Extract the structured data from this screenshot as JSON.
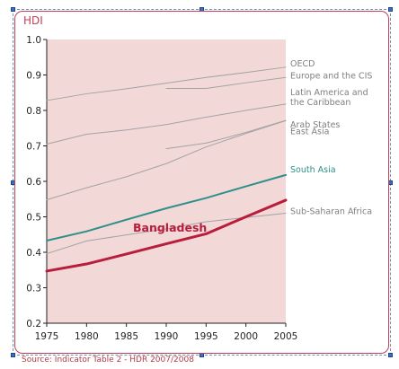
{
  "source_note": "Source: Indicator Table 2 - HDR 2007/2008",
  "chart_data": {
    "type": "line",
    "title": "",
    "ylabel": "HDI",
    "xlabel": "",
    "xlim": [
      1975,
      2005
    ],
    "ylim": [
      0.2,
      1.0
    ],
    "x_ticks": [
      1975,
      1980,
      1985,
      1990,
      1995,
      2000,
      2005
    ],
    "y_ticks": [
      0.2,
      0.3,
      0.4,
      0.5,
      0.6,
      0.7,
      0.8,
      0.9,
      1.0
    ],
    "y_tick_labels": [
      "0.2",
      "0.3",
      "0.4",
      "0.5",
      "0.6",
      "0.7",
      "0.8",
      "0.9",
      "1.0"
    ],
    "grid": false,
    "legend": "labels at line ends",
    "colors": {
      "plot_background": "#f3d8d8",
      "frame": "#c0405a",
      "regions": "#a3a3a3",
      "south_asia": "#2e8f8a",
      "bangladesh": "#b81d3c",
      "labels": "#7f7f7f"
    },
    "series": [
      {
        "name": "OECD",
        "color": "#a3a3a3",
        "x": [
          1975,
          1980,
          1985,
          1990,
          1995,
          2000,
          2005
        ],
        "y": [
          0.828,
          0.847,
          0.861,
          0.877,
          0.893,
          0.907,
          0.922
        ]
      },
      {
        "name": "Europe and the CIS",
        "color": "#a3a3a3",
        "x": [
          1990,
          1995,
          2000,
          2005
        ],
        "y": [
          0.862,
          0.862,
          0.878,
          0.893
        ]
      },
      {
        "name": "Latin America and the Caribbean",
        "color": "#a3a3a3",
        "x": [
          1975,
          1980,
          1985,
          1990,
          1995,
          2000,
          2005
        ],
        "y": [
          0.705,
          0.733,
          0.745,
          0.76,
          0.781,
          0.8,
          0.818
        ]
      },
      {
        "name": "East Asia",
        "color": "#a3a3a3",
        "x": [
          1975,
          1980,
          1985,
          1990,
          1995,
          2000,
          2005
        ],
        "y": [
          0.548,
          0.582,
          0.613,
          0.65,
          0.697,
          0.735,
          0.771
        ]
      },
      {
        "name": "Arab States",
        "color": "#a3a3a3",
        "x": [
          1990,
          1995,
          2000,
          2005
        ],
        "y": [
          0.692,
          0.708,
          0.738,
          0.772
        ]
      },
      {
        "name": "South Asia",
        "color": "#2e8f8a",
        "x": [
          1975,
          1980,
          1985,
          1990,
          1995,
          2000,
          2005
        ],
        "y": [
          0.433,
          0.459,
          0.492,
          0.524,
          0.553,
          0.586,
          0.618
        ]
      },
      {
        "name": "Sub-Saharan Africa",
        "color": "#a3a3a3",
        "x": [
          1975,
          1980,
          1985,
          1990,
          1995,
          2000,
          2005
        ],
        "y": [
          0.396,
          0.432,
          0.449,
          0.466,
          0.486,
          0.498,
          0.51
        ]
      },
      {
        "name": "Bangladesh",
        "color": "#b81d3c",
        "x": [
          1975,
          1980,
          1985,
          1990,
          1995,
          2000,
          2005
        ],
        "y": [
          0.347,
          0.367,
          0.395,
          0.424,
          0.452,
          0.5,
          0.547
        ]
      }
    ]
  }
}
